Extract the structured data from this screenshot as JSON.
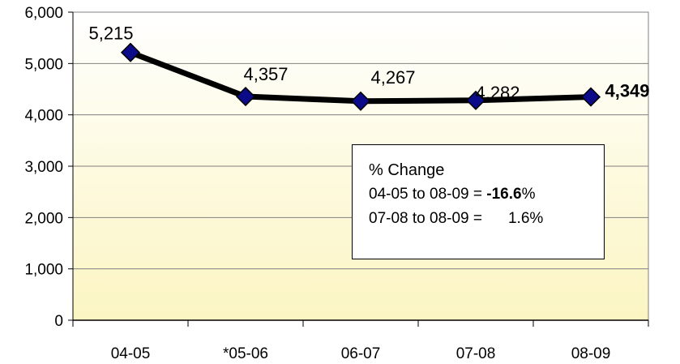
{
  "chart_data": {
    "type": "line",
    "title": "",
    "xlabel": "",
    "ylabel": "",
    "categories": [
      "04-05",
      "*05-06",
      "06-07",
      "07-08",
      "08-09"
    ],
    "series": [
      {
        "values": [
          5215,
          4357,
          4267,
          4282,
          4349
        ]
      }
    ],
    "data_labels": [
      "5,215",
      "4,357",
      "4,267",
      "4,282",
      "4,349"
    ],
    "ylim": [
      0,
      6000
    ],
    "yticks": [
      0,
      1000,
      2000,
      3000,
      4000,
      5000,
      6000
    ],
    "ytick_labels": [
      "0",
      "1,000",
      "2,000",
      "3,000",
      "4,000",
      "5,000",
      "6,000"
    ],
    "grid": true,
    "line_color": "#000000",
    "marker_color": "#0b0b8a",
    "background_gradient": [
      "#fbf5c2",
      "#ffffff"
    ]
  },
  "annotation": {
    "title": "% Change",
    "line1_label": "04-05 to 08-09 =",
    "line1_value": "-16.6",
    "line1_suffix": "%",
    "line2_label": "07-08 to 08-09 =",
    "line2_value": "1.6%"
  }
}
